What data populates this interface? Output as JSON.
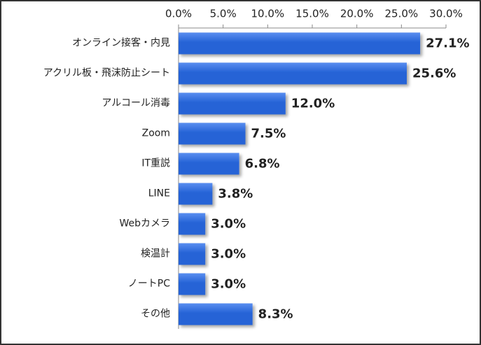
{
  "chart_data": {
    "type": "bar",
    "orientation": "horizontal",
    "categories": [
      "オンライン接客・内見",
      "アクリル板・飛沫防止シート",
      "アルコール消毒",
      "Zoom",
      "IT重説",
      "LINE",
      "Webカメラ",
      "検温計",
      "ノートPC",
      "その他"
    ],
    "values": [
      27.1,
      25.6,
      12.0,
      7.5,
      6.8,
      3.8,
      3.0,
      3.0,
      3.0,
      8.3
    ],
    "value_labels": [
      "27.1%",
      "25.6%",
      "12.0%",
      "7.5%",
      "6.8%",
      "3.8%",
      "3.0%",
      "3.0%",
      "3.0%",
      "8.3%"
    ],
    "color": "#2563d6",
    "xlim": [
      0,
      30
    ],
    "xticks": [
      {
        "value": 0,
        "label": "0.0%"
      },
      {
        "value": 5,
        "label": "5.0%"
      },
      {
        "value": 10,
        "label": "10.0%"
      },
      {
        "value": 15,
        "label": "15.0%"
      },
      {
        "value": 20,
        "label": "20.0%"
      },
      {
        "value": 25,
        "label": "25.0%"
      },
      {
        "value": 30,
        "label": "30.0%"
      }
    ],
    "grid": false
  }
}
